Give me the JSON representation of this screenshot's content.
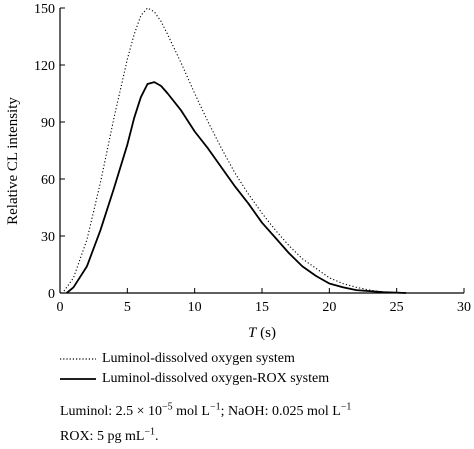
{
  "chart_data": {
    "type": "line",
    "xlabel": "T",
    "xlabel_unit": " (s)",
    "ylabel": "Relative CL intensity",
    "xlim": [
      0,
      30
    ],
    "ylim": [
      0,
      150
    ],
    "xticks": [
      0,
      5,
      10,
      15,
      20,
      25,
      30
    ],
    "yticks": [
      0,
      30,
      60,
      90,
      120,
      150
    ],
    "grid": false,
    "legend_position": "below",
    "series": [
      {
        "name": "Luminol-dissolved oxygen system",
        "style": "dotted",
        "color": "#000000",
        "x": [
          0.3,
          1,
          2,
          3,
          4,
          5,
          5.5,
          6,
          6.5,
          7,
          7.5,
          8,
          9,
          10,
          11,
          12,
          13,
          14,
          15,
          16,
          17,
          18,
          19,
          20,
          21,
          22,
          23,
          24,
          25
        ],
        "y": [
          1,
          8,
          28,
          58,
          92,
          123,
          136,
          146,
          150,
          148,
          143,
          136,
          121,
          105,
          90,
          76,
          63,
          52,
          42,
          33,
          25,
          18,
          13,
          8,
          5,
          3,
          1.5,
          0.5,
          0
        ]
      },
      {
        "name": "Luminol-dissolved oxygen-ROX system",
        "style": "solid",
        "color": "#000000",
        "x": [
          0.5,
          1,
          2,
          3,
          4,
          5,
          5.5,
          6,
          6.5,
          7,
          7.5,
          8,
          9,
          10,
          11,
          12,
          13,
          14,
          15,
          16,
          17,
          18,
          19,
          20,
          21,
          22,
          23,
          24,
          25,
          25.7
        ],
        "y": [
          0,
          3,
          14,
          33,
          55,
          78,
          92,
          103,
          110,
          111,
          109,
          105,
          96,
          85,
          76,
          66,
          56,
          47,
          37,
          29,
          21,
          14,
          9,
          5,
          3,
          1.5,
          1,
          0.5,
          0.2,
          0
        ]
      }
    ]
  },
  "notes": {
    "luminol": "Luminol: 2.5 × 10",
    "luminol_exp": "−5",
    "luminol_unit": " mol L",
    "luminol_unit_exp": "−1",
    "naoh": "; NaOH: 0.025 mol L",
    "naoh_exp": "−1",
    "rox": "ROX: 5 pg mL",
    "rox_exp": "−1",
    "rox_end": "."
  }
}
